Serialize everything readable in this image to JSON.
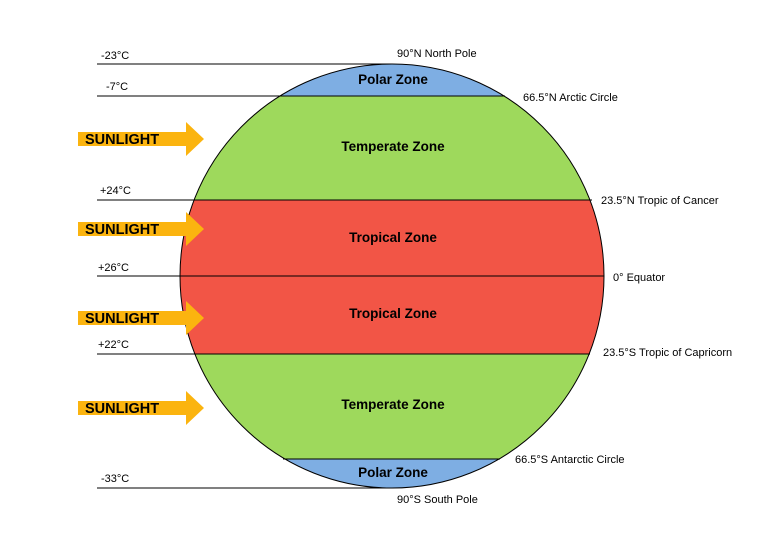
{
  "zones": {
    "polar_north": "Polar Zone",
    "temperate_north": "Temperate Zone",
    "tropical_north": "Tropical Zone",
    "tropical_south": "Tropical Zone",
    "temperate_south": "Temperate Zone",
    "polar_south": "Polar Zone"
  },
  "latitudes": {
    "north_pole": "90°N North Pole",
    "arctic_circle": "66.5°N Arctic Circle",
    "tropic_cancer": "23.5°N Tropic of Cancer",
    "equator": "0° Equator",
    "tropic_capricorn": "23.5°S Tropic of Capricorn",
    "antarctic_circle": "66.5°S Antarctic Circle",
    "south_pole": "90°S South Pole"
  },
  "temperatures": {
    "north_pole": "-23°C",
    "arctic_circle": "-7°C",
    "tropic_cancer": "+24°C",
    "equator": "+26°C",
    "tropic_capricorn": "+22°C",
    "south_pole": "-33°C"
  },
  "sunlight": {
    "arrow1": "SUNLIGHT",
    "arrow2": "SUNLIGHT",
    "arrow3": "SUNLIGHT",
    "arrow4": "SUNLIGHT"
  },
  "colors": {
    "polar": "#7eaee3",
    "temperate": "#9ed95c",
    "tropical": "#f25546",
    "arrow": "#fbb40f"
  }
}
